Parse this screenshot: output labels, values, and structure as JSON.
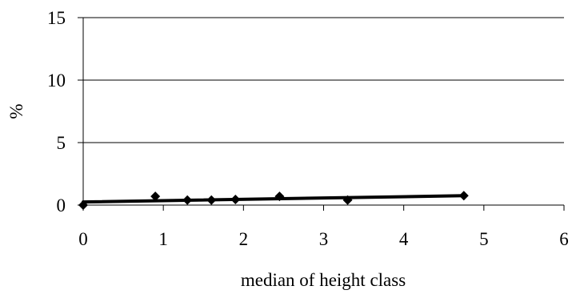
{
  "chart_data": {
    "type": "scatter",
    "title": "",
    "xlabel": "median of height class",
    "ylabel": "%",
    "xlim": [
      0,
      6
    ],
    "ylim": [
      0,
      15
    ],
    "xticks": [
      0,
      1,
      2,
      3,
      4,
      5,
      6
    ],
    "yticks": [
      0,
      5,
      10,
      15
    ],
    "grid": "horizontal",
    "legend": "none",
    "series": [
      {
        "marker": "diamond",
        "x": [
          0,
          0.9,
          1.3,
          1.6,
          1.9,
          2.45,
          3.3,
          4.75
        ],
        "y": [
          0.0,
          0.7,
          0.4,
          0.4,
          0.45,
          0.7,
          0.4,
          0.75
        ]
      }
    ],
    "trendline": {
      "type": "linear",
      "x": [
        0,
        4.75
      ],
      "y": [
        0.25,
        0.75
      ]
    },
    "colors": {
      "marker": "#000000",
      "line": "#000000",
      "grid": "#000000",
      "background": "#ffffff"
    }
  }
}
